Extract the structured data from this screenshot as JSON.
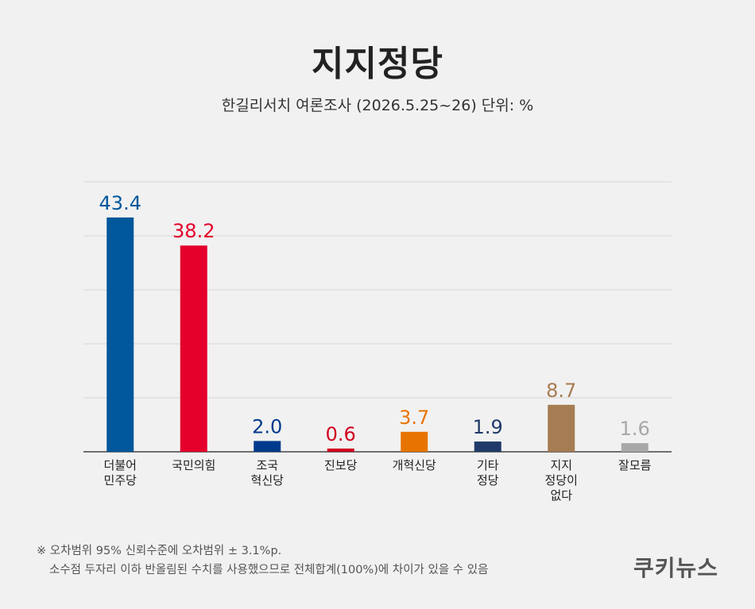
{
  "header": {
    "title": "지지정당",
    "subtitle": "한길리서치 여론조사 (2026.5.25~26) 단위: %"
  },
  "chart_data": {
    "type": "bar",
    "title": "지지정당",
    "subtitle": "한길리서치 여론조사 (2026.5.25~26) 단위: %",
    "categories": [
      [
        "더불어",
        "민주당"
      ],
      [
        "국민의힘"
      ],
      [
        "조국",
        "혁신당"
      ],
      [
        "진보당"
      ],
      [
        "개혁신당"
      ],
      [
        "기타",
        "정당"
      ],
      [
        "지지",
        "정당이",
        "없다"
      ],
      [
        "잘모름"
      ]
    ],
    "values": [
      43.4,
      38.2,
      2.0,
      0.6,
      3.7,
      1.9,
      8.7,
      1.6
    ],
    "value_labels": [
      "43.4",
      "38.2",
      "2.0",
      "0.6",
      "3.7",
      "1.9",
      "8.7",
      "1.6"
    ],
    "colors": [
      "#01579b",
      "#e4002b",
      "#003a8c",
      "#d2001f",
      "#e87400",
      "#1f3a68",
      "#a67c52",
      "#a8a8a8"
    ],
    "ylim": [
      0,
      50
    ],
    "grid": true,
    "gridline_values": [
      10,
      20,
      30,
      40,
      50
    ],
    "legend": "none"
  },
  "footer": {
    "note_line1": "※ 오차범위 95% 신뢰수준에 오차범위 ± 3.1%p.",
    "note_line2": "소수점 두자리 이하 반올림된 수치를 사용했으므로 전체합계(100%)에 차이가 있을 수 있음",
    "brand": "쿠키뉴스"
  }
}
